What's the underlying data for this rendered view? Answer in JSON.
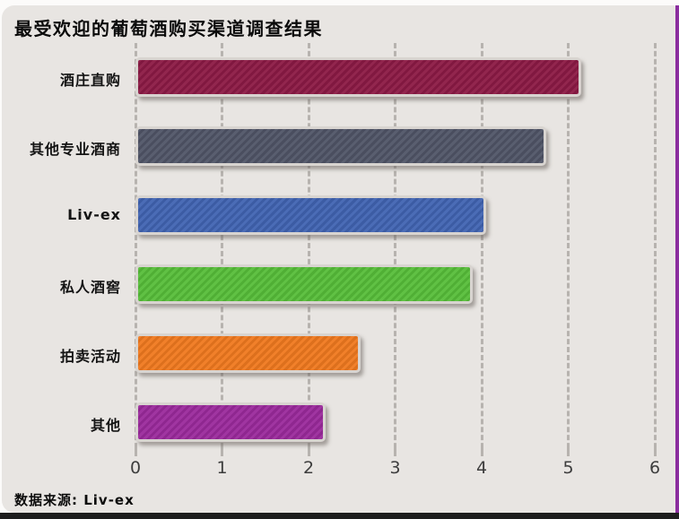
{
  "chart_data": {
    "type": "bar",
    "orientation": "horizontal",
    "title": "最受欢迎的葡萄酒购买渠道调查结果",
    "categories": [
      "酒庄直购",
      "其他专业酒商",
      "Liv-ex",
      "私人酒窖",
      "拍卖活动",
      "其他"
    ],
    "values": [
      5.15,
      4.75,
      4.05,
      3.9,
      2.6,
      2.2
    ],
    "bar_colors": [
      "#8C1A45",
      "#505567",
      "#4164B2",
      "#57BE3A",
      "#F0791F",
      "#9B2A9C"
    ],
    "xlabel": "",
    "ylabel": "",
    "xlim": [
      0,
      6
    ],
    "xticks": [
      "0",
      "1",
      "2",
      "3",
      "4",
      "5",
      "6"
    ],
    "grid": "dashed-vertical",
    "legend": "none"
  },
  "source_note": "数据来源: Liv-ex",
  "colors": {
    "page_background": "#fcfbfa",
    "card_background": "#e8e5e2",
    "gridline": "#b7b3af",
    "bar_border": "#d8d4d0",
    "right_border_accent": "#8A2D9E",
    "bottom_band": "#1d1d1d",
    "text": "#0b0b0b",
    "tick_text": "#3d3d3d"
  }
}
